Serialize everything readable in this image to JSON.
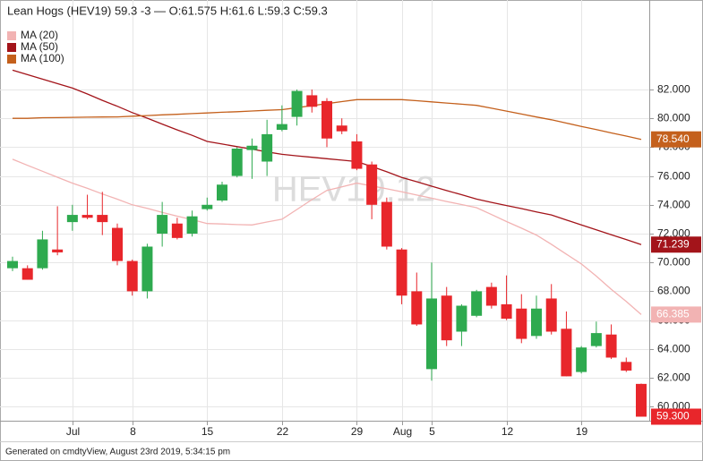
{
  "chart_data": {
    "type": "candlestick",
    "title": "Lean Hogs (HEV19) 59.3 -3 — O:61.575 H:61.6 L:59.3 C:59.3",
    "watermark": "HEV19,12",
    "footer": "Generated on cmdtyView, August 23rd 2019, 5:34:15 pm",
    "categories": [
      null,
      null,
      null,
      null,
      "Jul",
      null,
      null,
      null,
      "8",
      null,
      null,
      null,
      null,
      "15",
      null,
      null,
      null,
      null,
      "22",
      null,
      null,
      null,
      null,
      "29",
      null,
      null,
      "Aug",
      null,
      "5",
      null,
      null,
      null,
      null,
      "12",
      null,
      null,
      null,
      null,
      "19",
      null,
      null,
      null,
      null
    ],
    "candles": {
      "up_color": "#2eaa4f",
      "down_color": "#e8262b",
      "open": [
        69.6,
        69.6,
        69.6,
        70.9,
        72.8,
        73.3,
        73.3,
        72.4,
        70.1,
        68.0,
        72.0,
        72.7,
        72.0,
        73.7,
        74.3,
        76.0,
        77.8,
        77.0,
        79.2,
        80.1,
        81.6,
        81.2,
        79.5,
        78.4,
        76.8,
        74.2,
        70.9,
        68.0,
        62.6,
        67.7,
        65.2,
        66.3,
        68.3,
        67.1,
        66.8,
        64.9,
        67.5,
        65.4,
        62.4,
        64.2,
        65.0,
        63.1,
        61.575
      ],
      "high": [
        70.4,
        69.8,
        72.2,
        73.9,
        74.0,
        74.7,
        74.9,
        72.7,
        70.2,
        71.3,
        74.2,
        73.1,
        73.6,
        74.5,
        75.6,
        78.0,
        78.6,
        79.9,
        80.9,
        82.0,
        82.0,
        81.4,
        80.0,
        78.9,
        77.0,
        74.5,
        71.0,
        69.3,
        70.0,
        68.3,
        67.1,
        68.1,
        68.6,
        69.1,
        67.8,
        67.7,
        68.5,
        66.6,
        64.2,
        65.9,
        65.7,
        63.4,
        61.6
      ],
      "low": [
        69.4,
        68.8,
        69.5,
        70.5,
        72.2,
        73.0,
        71.9,
        69.8,
        67.7,
        67.5,
        71.1,
        71.6,
        71.8,
        73.6,
        74.2,
        75.9,
        75.8,
        76.0,
        79.1,
        79.5,
        80.4,
        78.0,
        78.9,
        76.4,
        73.0,
        70.9,
        67.1,
        65.6,
        61.8,
        64.2,
        64.2,
        66.2,
        66.8,
        66.0,
        64.4,
        64.7,
        65.0,
        62.1,
        62.3,
        64.1,
        63.3,
        62.4,
        59.3
      ],
      "close": [
        70.1,
        68.8,
        71.6,
        70.7,
        73.3,
        73.1,
        72.8,
        70.1,
        68.0,
        71.1,
        73.3,
        71.7,
        73.2,
        74.0,
        75.4,
        77.9,
        78.1,
        78.9,
        79.6,
        81.9,
        80.8,
        78.6,
        79.1,
        76.5,
        74.0,
        71.1,
        67.7,
        65.7,
        67.5,
        64.6,
        67.0,
        68.0,
        67.0,
        66.1,
        64.7,
        66.8,
        65.2,
        62.1,
        64.1,
        65.1,
        63.4,
        62.5,
        59.3
      ],
      "value_labels": [
        null,
        null,
        null,
        null,
        null,
        null,
        null,
        null,
        null,
        null,
        null,
        null,
        null,
        null,
        null,
        null,
        null,
        null,
        null,
        null,
        null,
        null,
        null,
        null,
        null,
        null,
        null,
        null,
        null,
        null,
        null,
        null,
        null,
        null,
        null,
        null,
        null,
        null,
        null,
        null,
        null,
        null,
        "59.300"
      ]
    },
    "series": [
      {
        "name": "MA (20)",
        "color": "#f2b3b3",
        "values": [
          77.16,
          76.74,
          76.33,
          75.91,
          75.5,
          75.14,
          74.75,
          74.39,
          74.0,
          73.75,
          73.48,
          73.21,
          72.97,
          72.7,
          72.67,
          72.63,
          72.6,
          72.81,
          73.0,
          73.68,
          74.36,
          75.0,
          75.25,
          75.5,
          75.31,
          75.11,
          74.9,
          74.68,
          74.46,
          74.23,
          74.02,
          73.8,
          73.32,
          72.84,
          72.38,
          71.9,
          71.26,
          70.58,
          69.9,
          69.05,
          68.14,
          67.29,
          66.385
        ],
        "value_labels": [
          null,
          null,
          null,
          null,
          null,
          null,
          null,
          null,
          null,
          null,
          null,
          null,
          null,
          null,
          null,
          null,
          null,
          null,
          null,
          null,
          null,
          null,
          null,
          null,
          null,
          null,
          null,
          null,
          null,
          null,
          null,
          null,
          null,
          null,
          null,
          null,
          null,
          null,
          null,
          null,
          null,
          null,
          "66.385"
        ]
      },
      {
        "name": "MA (50)",
        "color": "#a3141a",
        "values": [
          83.34,
          83.03,
          82.72,
          82.41,
          82.1,
          81.69,
          81.25,
          80.84,
          80.4,
          80.01,
          79.6,
          79.2,
          78.82,
          78.4,
          78.22,
          78.04,
          77.86,
          77.67,
          77.5,
          77.4,
          77.3,
          77.2,
          77.1,
          77.0,
          76.66,
          76.29,
          75.9,
          75.6,
          75.29,
          74.99,
          74.7,
          74.4,
          74.17,
          73.95,
          73.74,
          73.51,
          73.3,
          72.95,
          72.6,
          72.27,
          71.92,
          71.59,
          71.239
        ],
        "value_labels": [
          null,
          null,
          null,
          null,
          null,
          null,
          null,
          null,
          null,
          null,
          null,
          null,
          null,
          null,
          null,
          null,
          null,
          null,
          null,
          null,
          null,
          null,
          null,
          null,
          null,
          null,
          null,
          null,
          null,
          null,
          null,
          null,
          null,
          null,
          null,
          null,
          null,
          null,
          null,
          null,
          null,
          null,
          "71.239"
        ]
      },
      {
        "name": "MA (100)",
        "color": "#c4601c",
        "values": [
          80.0,
          80.0,
          80.04,
          80.05,
          80.07,
          80.08,
          80.09,
          80.1,
          80.15,
          80.19,
          80.24,
          80.28,
          80.33,
          80.37,
          80.42,
          80.46,
          80.51,
          80.56,
          80.6,
          80.74,
          80.88,
          81.02,
          81.16,
          81.3,
          81.3,
          81.3,
          81.3,
          81.22,
          81.14,
          81.06,
          80.98,
          80.9,
          80.7,
          80.5,
          80.3,
          80.09,
          79.9,
          79.67,
          79.44,
          79.22,
          78.99,
          78.77,
          78.54
        ],
        "value_labels": [
          null,
          null,
          null,
          null,
          null,
          null,
          null,
          null,
          null,
          null,
          null,
          null,
          null,
          null,
          null,
          null,
          null,
          null,
          null,
          null,
          null,
          null,
          null,
          null,
          null,
          null,
          null,
          null,
          null,
          null,
          null,
          null,
          null,
          null,
          null,
          null,
          null,
          null,
          null,
          null,
          null,
          null,
          "78.540"
        ]
      }
    ],
    "ylim": [
      59.02,
      88.21
    ],
    "yticks": [
      {
        "value": 60,
        "label": "60.000"
      },
      {
        "value": 62,
        "label": "62.000"
      },
      {
        "value": 64,
        "label": "64.000"
      },
      {
        "value": 66,
        "label": "66.000"
      },
      {
        "value": 68,
        "label": "68.000"
      },
      {
        "value": 70,
        "label": "70.000"
      },
      {
        "value": 72,
        "label": "72.000"
      },
      {
        "value": 74,
        "label": "74.000"
      },
      {
        "value": 76,
        "label": "76.000"
      },
      {
        "value": 78,
        "label": "78.000"
      },
      {
        "value": 80,
        "label": "80.000"
      },
      {
        "value": 82,
        "label": "82.000"
      }
    ],
    "grid": true
  }
}
